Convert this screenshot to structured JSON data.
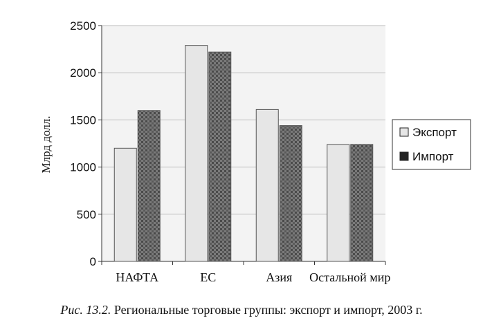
{
  "chart_data": {
    "type": "bar",
    "categories": [
      "НАФТА",
      "ЕС",
      "Азия",
      "Остальной мир"
    ],
    "series": [
      {
        "name": "Экспорт",
        "values": [
          1200,
          2290,
          1610,
          1240
        ],
        "color": "#e6e6e6"
      },
      {
        "name": "Импорт",
        "values": [
          1600,
          2220,
          1440,
          1240
        ],
        "color": "#6a6a6a"
      }
    ],
    "ylabel": "Млрд долл.",
    "ylim": [
      0,
      2500
    ],
    "yticks": [
      "0",
      "500",
      "1000",
      "1500",
      "2000",
      "2500"
    ],
    "grid": true,
    "legend_position": "right"
  },
  "caption": {
    "figure_number": "Рис. 13.2.",
    "text": "Региональные торговые группы: экспорт и импорт, 2003 г."
  }
}
